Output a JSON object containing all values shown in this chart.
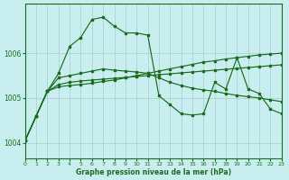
{
  "xlabel": "Graphe pression niveau de la mer (hPa)",
  "xlim": [
    0,
    23
  ],
  "ylim": [
    1003.65,
    1007.1
  ],
  "yticks": [
    1004,
    1005,
    1006
  ],
  "xticks": [
    0,
    1,
    2,
    3,
    4,
    5,
    6,
    7,
    8,
    9,
    10,
    11,
    12,
    13,
    14,
    15,
    16,
    17,
    18,
    19,
    20,
    21,
    22,
    23
  ],
  "bg_color": "#c8eef0",
  "line_color": "#1a6e1a",
  "grid_color": "#a8cccc",
  "line1_y": [
    1004.05,
    1004.6,
    1005.15,
    1005.55,
    1006.15,
    1006.35,
    1006.75,
    1006.8,
    1006.6,
    1006.45,
    1006.45,
    1006.4,
    1005.05,
    1004.85,
    1004.65,
    1004.62,
    1004.65,
    1005.35,
    1005.2,
    1005.9,
    1005.2,
    1005.1,
    1004.75,
    1004.65
  ],
  "line2_y": [
    1004.05,
    1004.6,
    1005.15,
    1005.45,
    1005.5,
    1005.55,
    1005.6,
    1005.65,
    1005.62,
    1005.6,
    1005.58,
    1005.55,
    1005.45,
    1005.35,
    1005.28,
    1005.22,
    1005.18,
    1005.15,
    1005.1,
    1005.06,
    1005.03,
    1005.0,
    1004.96,
    1004.92
  ],
  "line3_y": [
    1004.05,
    1004.6,
    1005.15,
    1005.25,
    1005.28,
    1005.3,
    1005.33,
    1005.37,
    1005.4,
    1005.45,
    1005.5,
    1005.55,
    1005.6,
    1005.65,
    1005.7,
    1005.75,
    1005.8,
    1005.83,
    1005.87,
    1005.9,
    1005.93,
    1005.96,
    1005.98,
    1006.0
  ],
  "line4_y": [
    1004.05,
    1004.6,
    1005.15,
    1005.3,
    1005.35,
    1005.38,
    1005.4,
    1005.42,
    1005.44,
    1005.46,
    1005.48,
    1005.5,
    1005.52,
    1005.54,
    1005.56,
    1005.58,
    1005.6,
    1005.62,
    1005.64,
    1005.66,
    1005.68,
    1005.7,
    1005.72,
    1005.74
  ]
}
